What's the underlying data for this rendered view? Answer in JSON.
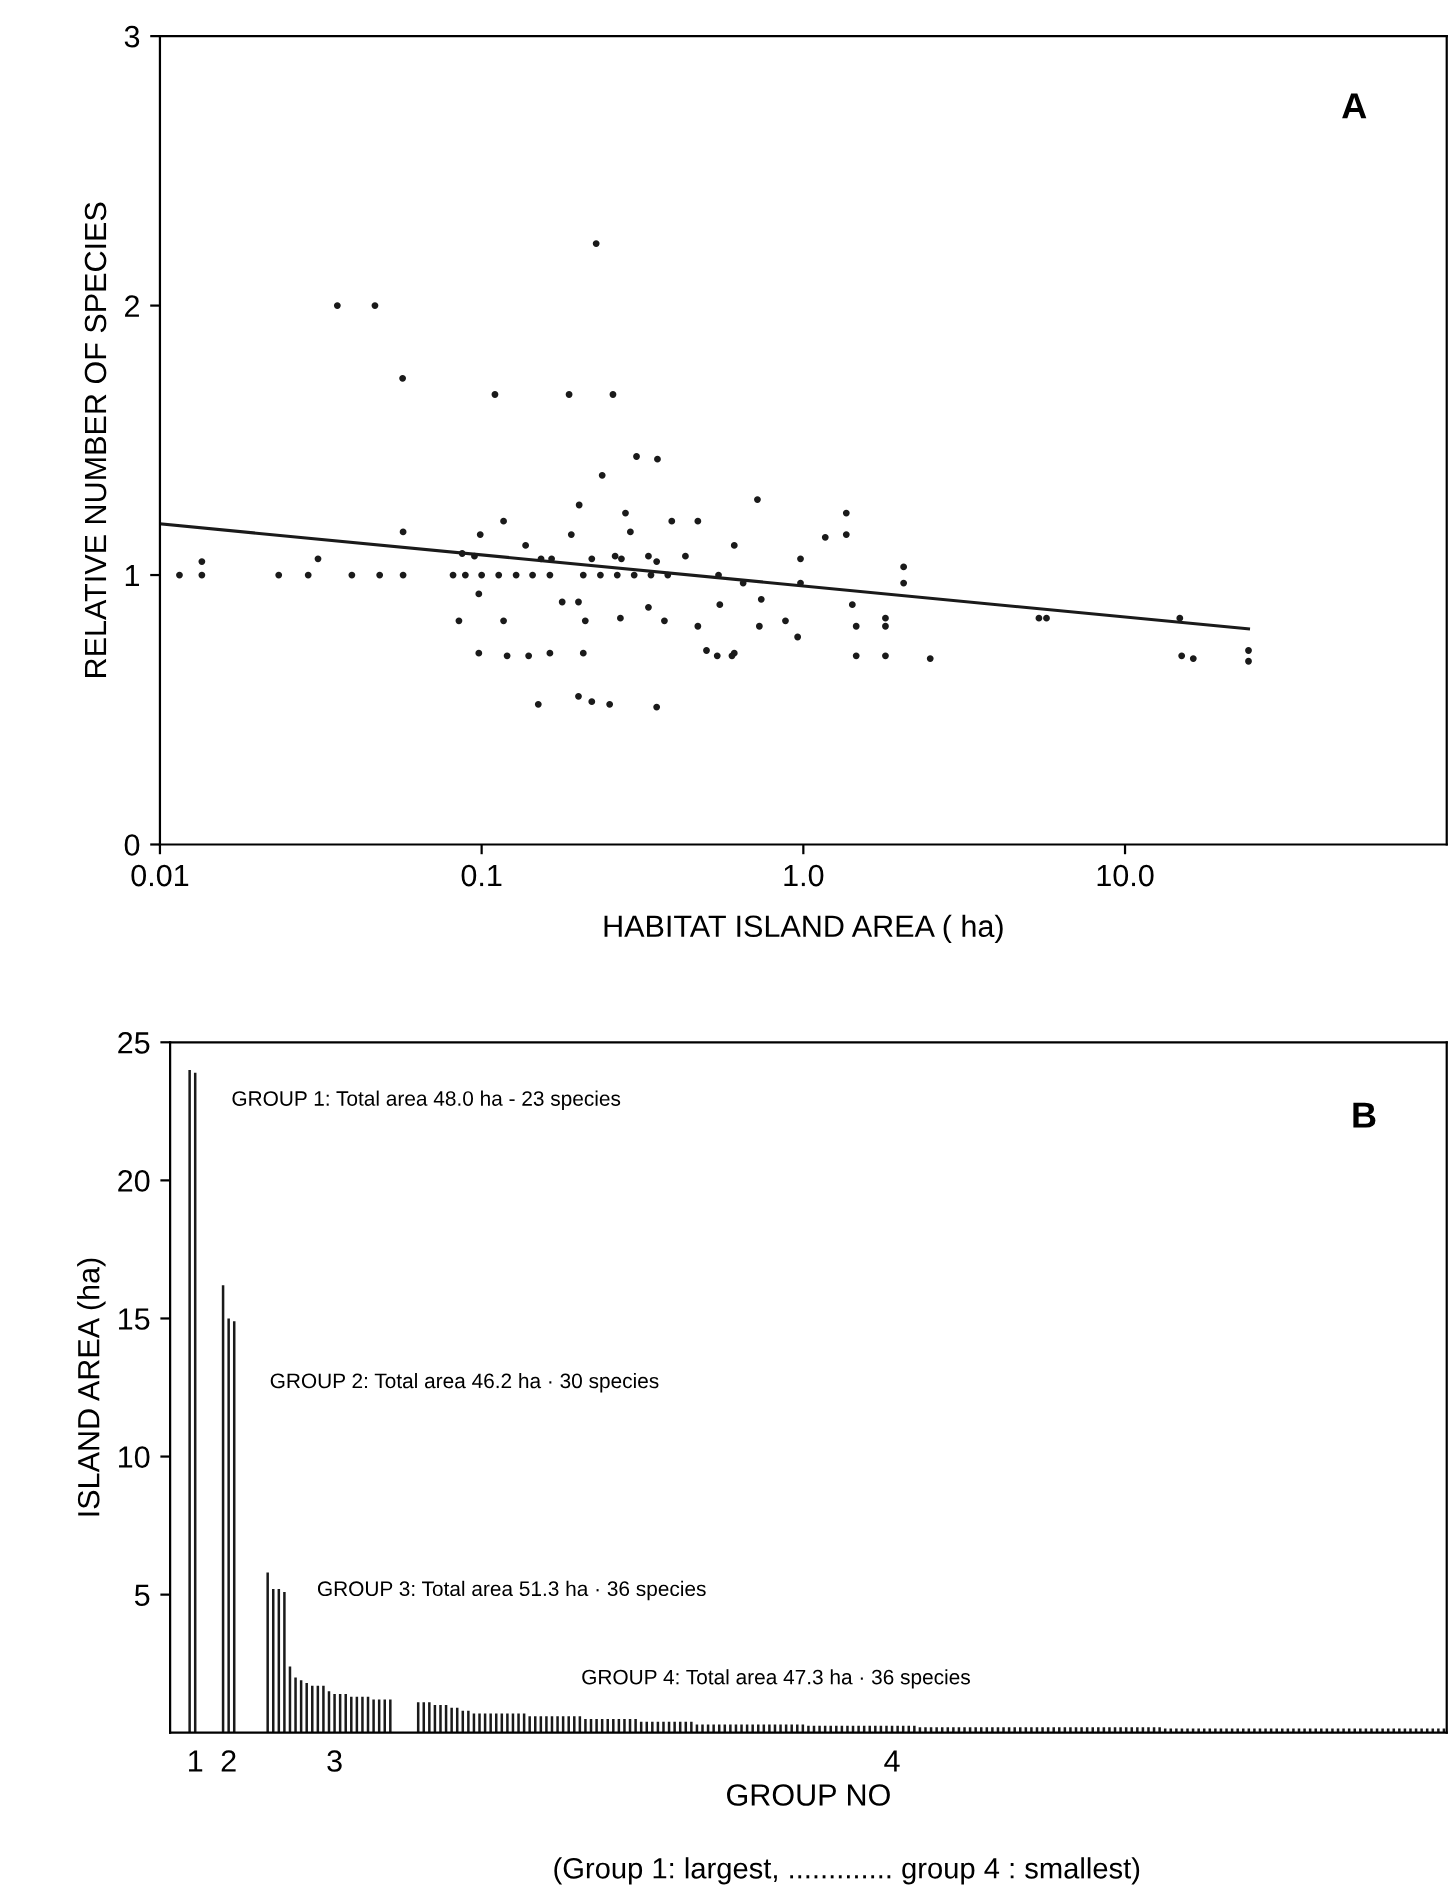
{
  "chart_data": [
    {
      "type": "scatter",
      "xlabel": "HABITAT ISLAND AREA ( ha)",
      "ylabel": "RELATIVE NUMBER OF SPECIES",
      "log": "x",
      "xlim": [
        0.01,
        100
      ],
      "ylim": [
        0,
        3
      ],
      "xticks": [
        0.01,
        0.1,
        {
          "value": 1,
          "label": "1.0"
        },
        {
          "value": 10,
          "label": "10.0"
        }
      ],
      "yticks": [
        0,
        1,
        2,
        3
      ],
      "marker": "circle",
      "annotations": [
        "A"
      ],
      "series": [
        {
          "type": "scatter",
          "color": "#1a1a1a",
          "x": [
            0.0356,
            0.0466,
            0.0568,
            0.11,
            0.187,
            0.256,
            0.227,
            0.303,
            0.352,
            0.237,
            0.72,
            0.201,
            1.36,
            0.28,
            0.39,
            0.47,
            0.117,
            0.057,
            0.099,
            0.19,
            0.29,
            1.36,
            1.17,
            0.61,
            0.137,
            0.43,
            0.153,
            0.272,
            0.98,
            0.031,
            0.0135,
            2.05,
            2.05,
            0.98,
            5.4,
            5.7,
            14.8,
            0.0115,
            0.0135,
            0.0234,
            0.0289,
            0.0395,
            0.0482,
            0.057,
            0.0815,
            0.089,
            0.1,
            0.113,
            0.128,
            0.144,
            0.163,
            0.207,
            0.234,
            0.264,
            0.298,
            0.336,
            0.379,
            0.545,
            0.65,
            0.087,
            0.095,
            0.165,
            0.22,
            0.26,
            0.33,
            0.35,
            0.098,
            0.117,
            0.085,
            0.178,
            0.2,
            0.21,
            0.27,
            0.33,
            0.37,
            0.47,
            0.55,
            0.73,
            0.74,
            0.88,
            0.96,
            1.42,
            1.46,
            1.8,
            1.8,
            0.098,
            0.163,
            0.207,
            0.54,
            0.61,
            1.46,
            1.8,
            2.48,
            15.0,
            16.3,
            24.2,
            24.2,
            0.15,
            0.2,
            0.22,
            0.25,
            0.35,
            0.12,
            0.14,
            0.5,
            0.6
          ],
          "values": [
            2.0,
            2.0,
            1.73,
            1.67,
            1.67,
            1.67,
            2.23,
            1.44,
            1.43,
            1.37,
            1.28,
            1.26,
            1.23,
            1.23,
            1.2,
            1.2,
            1.2,
            1.16,
            1.15,
            1.15,
            1.16,
            1.15,
            1.14,
            1.11,
            1.11,
            1.07,
            1.06,
            1.06,
            1.06,
            1.06,
            1.05,
            1.03,
            0.97,
            0.97,
            0.84,
            0.84,
            0.84,
            1.0,
            1.0,
            1.0,
            1.0,
            1.0,
            1.0,
            1.0,
            1.0,
            1.0,
            1.0,
            1.0,
            1.0,
            1.0,
            1.0,
            1.0,
            1.0,
            1.0,
            1.0,
            1.0,
            1.0,
            1.0,
            0.97,
            1.08,
            1.07,
            1.06,
            1.06,
            1.07,
            1.07,
            1.05,
            0.93,
            0.83,
            0.83,
            0.9,
            0.9,
            0.83,
            0.84,
            0.88,
            0.83,
            0.81,
            0.89,
            0.81,
            0.91,
            0.83,
            0.77,
            0.89,
            0.81,
            0.84,
            0.81,
            0.71,
            0.71,
            0.71,
            0.7,
            0.71,
            0.7,
            0.7,
            0.69,
            0.7,
            0.69,
            0.72,
            0.68,
            0.52,
            0.55,
            0.53,
            0.52,
            0.51,
            0.7,
            0.7,
            0.72,
            0.7
          ]
        },
        {
          "type": "line",
          "color": "#1a1a1a",
          "line_style": "solid",
          "marker": "none",
          "x": [
            0.01,
            24.2
          ],
          "values": [
            1.19,
            0.8
          ]
        }
      ]
    },
    {
      "type": "bar",
      "xlabel": "GROUP NO",
      "ylabel": "ISLAND AREA (ha)",
      "ylim": [
        0,
        25
      ],
      "yticks": [
        5,
        10,
        15,
        20,
        25
      ],
      "color": "#1a1a1a",
      "annotations": [
        "B",
        "GROUP 1: Total area 48.0 ha - 23 species",
        "GROUP 2: Total area 46.2 ha · 30 species",
        "GROUP 3: Total area 51.3 ha · 36 species",
        "GROUP 4: Total area 47.3 ha · 36 species",
        "(Group 1: largest, ............. group 4 : smallest)"
      ],
      "categories": [
        null,
        null,
        null,
        null,
        "1",
        null,
        null,
        null,
        null,
        null,
        "2",
        null,
        null,
        null,
        null,
        null,
        null,
        null,
        null,
        null,
        null,
        null,
        null,
        null,
        null,
        null,
        null,
        null,
        null,
        "3",
        null,
        null,
        null,
        null,
        null,
        null,
        null,
        null,
        null,
        null,
        null,
        null,
        null,
        null,
        null,
        null,
        null,
        null,
        null,
        null,
        null,
        null,
        null,
        null,
        null,
        null,
        null,
        null,
        null,
        null,
        null,
        null,
        null,
        null,
        null,
        null,
        null,
        null,
        null,
        null,
        null,
        null,
        null,
        null,
        null,
        null,
        null,
        null,
        null,
        null,
        null,
        null,
        null,
        null,
        null,
        null,
        null,
        null,
        null,
        null,
        null,
        null,
        null,
        null,
        null,
        null,
        null,
        null,
        null,
        null,
        null,
        null,
        null,
        null,
        null,
        null,
        null,
        null,
        null,
        null,
        null,
        null,
        null,
        null,
        null,
        null,
        null,
        null,
        null,
        null,
        null,
        null,
        null,
        null,
        null,
        null,
        null,
        null,
        null,
        "4",
        null,
        null,
        null,
        null,
        null,
        null,
        null,
        null,
        null,
        null,
        null,
        null,
        null,
        null,
        null,
        null,
        null,
        null,
        null,
        null,
        null,
        null,
        null,
        null,
        null,
        null,
        null,
        null,
        null,
        null,
        null,
        null,
        null,
        null,
        null,
        null,
        null,
        null,
        null,
        null,
        null,
        null,
        null,
        null,
        null,
        null,
        null,
        null,
        null,
        null,
        null,
        null,
        null,
        null,
        null,
        null,
        null,
        null,
        null,
        null,
        null,
        null,
        null,
        null,
        null,
        null,
        null,
        null,
        null,
        null,
        null,
        null,
        null,
        null,
        null,
        null,
        null,
        null,
        null,
        null,
        null,
        null,
        null,
        null,
        null,
        null,
        null,
        null,
        null,
        null,
        null,
        null,
        null,
        null,
        null,
        null,
        null,
        null,
        null
      ],
      "values": [
        null,
        null,
        null,
        24.0,
        23.9,
        null,
        null,
        null,
        null,
        16.2,
        15.0,
        14.9,
        null,
        null,
        null,
        null,
        null,
        5.8,
        5.2,
        5.2,
        5.1,
        2.4,
        2.0,
        1.9,
        1.8,
        1.7,
        1.7,
        1.7,
        1.5,
        1.4,
        1.4,
        1.4,
        1.3,
        1.3,
        1.3,
        1.3,
        1.2,
        1.2,
        1.2,
        1.2,
        null,
        null,
        null,
        null,
        1.1,
        1.1,
        1.1,
        1.0,
        1.0,
        1.0,
        0.9,
        0.9,
        0.8,
        0.8,
        0.7,
        0.7,
        0.7,
        0.7,
        0.7,
        0.7,
        0.7,
        0.7,
        0.7,
        0.7,
        0.6,
        0.6,
        0.6,
        0.6,
        0.6,
        0.6,
        0.6,
        0.6,
        0.6,
        0.6,
        0.5,
        0.5,
        0.5,
        0.5,
        0.5,
        0.5,
        0.5,
        0.5,
        0.5,
        0.5,
        0.4,
        0.4,
        0.4,
        0.4,
        0.4,
        0.4,
        0.4,
        0.4,
        0.4,
        0.4,
        0.3,
        0.3,
        0.3,
        0.3,
        0.3,
        0.3,
        0.3,
        0.3,
        0.3,
        0.3,
        0.3,
        0.3,
        0.3,
        0.3,
        0.3,
        0.3,
        0.3,
        0.3,
        0.3,
        0.3,
        0.25,
        0.25,
        0.25,
        0.25,
        0.25,
        0.25,
        0.25,
        0.25,
        0.25,
        0.25,
        0.25,
        0.25,
        0.25,
        0.25,
        0.25,
        0.25,
        0.25,
        0.25,
        0.25,
        0.25,
        0.2,
        0.2,
        0.2,
        0.2,
        0.2,
        0.2,
        0.2,
        0.2,
        0.2,
        0.2,
        0.2,
        0.2,
        0.2,
        0.2,
        0.2,
        0.2,
        0.2,
        0.2,
        0.2,
        0.2,
        0.2,
        0.2,
        0.2,
        0.2,
        0.2,
        0.2,
        0.2,
        0.2,
        0.2,
        0.2,
        0.2,
        0.2,
        0.2,
        0.2,
        0.2,
        0.2,
        0.2,
        0.2,
        0.2,
        0.2,
        0.2,
        0.2,
        0.2,
        0.2,
        0.15,
        0.15,
        0.15,
        0.15,
        0.15,
        0.15,
        0.15,
        0.15,
        0.15,
        0.15,
        0.15,
        0.15,
        0.15,
        0.15,
        0.15,
        0.15,
        0.15,
        0.15,
        0.15,
        0.15,
        0.15,
        0.15,
        0.15,
        0.15,
        0.15,
        0.15,
        0.15,
        0.15,
        0.15,
        0.15,
        0.15,
        0.15,
        0.15,
        0.15,
        0.15,
        0.15,
        0.15,
        0.15,
        0.15,
        0.15,
        0.15,
        0.15,
        0.15,
        0.15,
        0.15,
        0.15,
        0.15,
        0.15,
        0.15,
        0.15,
        0.15
      ]
    }
  ]
}
